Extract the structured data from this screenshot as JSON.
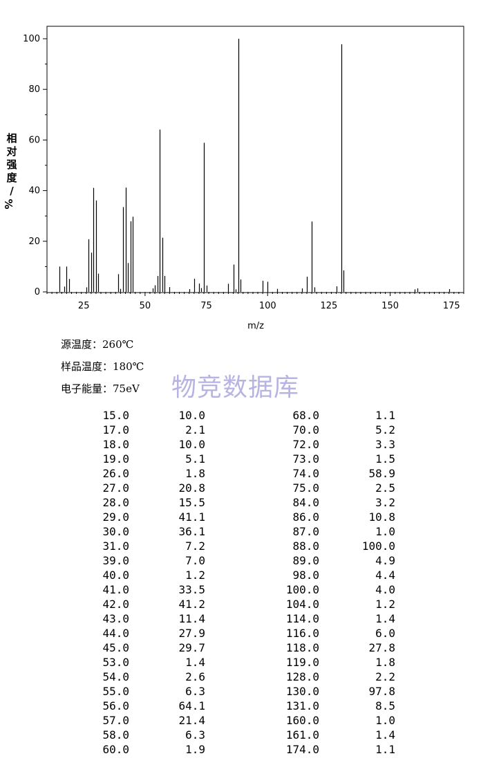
{
  "chart_data": {
    "type": "bar",
    "ylabel": "相对强度/%",
    "xlabel": "m/z",
    "xlim": [
      10,
      180
    ],
    "ylim": [
      0,
      105
    ],
    "xticks": [
      25,
      50,
      75,
      100,
      125,
      150,
      175
    ],
    "yticks": [
      0,
      20,
      40,
      60,
      80,
      100
    ],
    "peaks": [
      [
        15.0,
        10.0
      ],
      [
        17.0,
        2.1
      ],
      [
        18.0,
        10.0
      ],
      [
        19.0,
        5.1
      ],
      [
        26.0,
        1.8
      ],
      [
        27.0,
        20.8
      ],
      [
        28.0,
        15.5
      ],
      [
        29.0,
        41.1
      ],
      [
        30.0,
        36.1
      ],
      [
        31.0,
        7.2
      ],
      [
        39.0,
        7.0
      ],
      [
        40.0,
        1.2
      ],
      [
        41.0,
        33.5
      ],
      [
        42.0,
        41.2
      ],
      [
        43.0,
        11.4
      ],
      [
        44.0,
        27.9
      ],
      [
        45.0,
        29.7
      ],
      [
        53.0,
        1.4
      ],
      [
        54.0,
        2.6
      ],
      [
        55.0,
        6.3
      ],
      [
        56.0,
        64.1
      ],
      [
        57.0,
        21.4
      ],
      [
        58.0,
        6.3
      ],
      [
        60.0,
        1.9
      ],
      [
        68.0,
        1.1
      ],
      [
        70.0,
        5.2
      ],
      [
        72.0,
        3.3
      ],
      [
        73.0,
        1.5
      ],
      [
        74.0,
        58.9
      ],
      [
        75.0,
        2.5
      ],
      [
        84.0,
        3.2
      ],
      [
        86.0,
        10.8
      ],
      [
        87.0,
        1.0
      ],
      [
        88.0,
        100.0
      ],
      [
        89.0,
        4.9
      ],
      [
        98.0,
        4.4
      ],
      [
        100.0,
        4.0
      ],
      [
        104.0,
        1.2
      ],
      [
        114.0,
        1.4
      ],
      [
        116.0,
        6.0
      ],
      [
        118.0,
        27.8
      ],
      [
        119.0,
        1.8
      ],
      [
        128.0,
        2.2
      ],
      [
        130.0,
        97.8
      ],
      [
        131.0,
        8.5
      ],
      [
        160.0,
        1.0
      ],
      [
        161.0,
        1.4
      ],
      [
        174.0,
        1.1
      ]
    ]
  },
  "conditions": {
    "source_temp": "源温度：260℃",
    "sample_temp": "样品温度：180℃",
    "electron_energy": "电子能量：75eV"
  },
  "watermark": "物竞数据库",
  "table": [
    [
      "15.0",
      "10.0",
      "68.0",
      "1.1"
    ],
    [
      "17.0",
      "2.1",
      "70.0",
      "5.2"
    ],
    [
      "18.0",
      "10.0",
      "72.0",
      "3.3"
    ],
    [
      "19.0",
      "5.1",
      "73.0",
      "1.5"
    ],
    [
      "26.0",
      "1.8",
      "74.0",
      "58.9"
    ],
    [
      "27.0",
      "20.8",
      "75.0",
      "2.5"
    ],
    [
      "28.0",
      "15.5",
      "84.0",
      "3.2"
    ],
    [
      "29.0",
      "41.1",
      "86.0",
      "10.8"
    ],
    [
      "30.0",
      "36.1",
      "87.0",
      "1.0"
    ],
    [
      "31.0",
      "7.2",
      "88.0",
      "100.0"
    ],
    [
      "39.0",
      "7.0",
      "89.0",
      "4.9"
    ],
    [
      "40.0",
      "1.2",
      "98.0",
      "4.4"
    ],
    [
      "41.0",
      "33.5",
      "100.0",
      "4.0"
    ],
    [
      "42.0",
      "41.2",
      "104.0",
      "1.2"
    ],
    [
      "43.0",
      "11.4",
      "114.0",
      "1.4"
    ],
    [
      "44.0",
      "27.9",
      "116.0",
      "6.0"
    ],
    [
      "45.0",
      "29.7",
      "118.0",
      "27.8"
    ],
    [
      "53.0",
      "1.4",
      "119.0",
      "1.8"
    ],
    [
      "54.0",
      "2.6",
      "128.0",
      "2.2"
    ],
    [
      "55.0",
      "6.3",
      "130.0",
      "97.8"
    ],
    [
      "56.0",
      "64.1",
      "131.0",
      "8.5"
    ],
    [
      "57.0",
      "21.4",
      "160.0",
      "1.0"
    ],
    [
      "58.0",
      "6.3",
      "161.0",
      "1.4"
    ],
    [
      "60.0",
      "1.9",
      "174.0",
      "1.1"
    ]
  ]
}
